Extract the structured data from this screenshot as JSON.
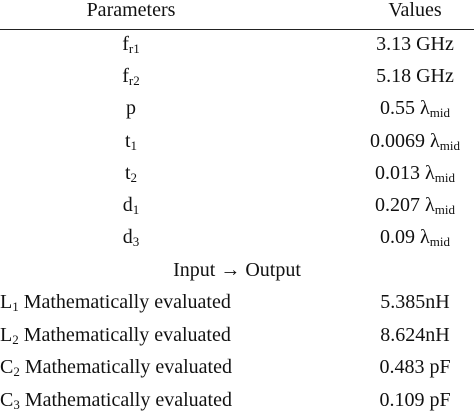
{
  "table": {
    "header": [
      "Parameters",
      "Values"
    ],
    "rows": [
      {
        "param": [
          "f",
          {
            "sub": "r1"
          }
        ],
        "value": [
          "3.13 GHz"
        ]
      },
      {
        "param": [
          "f",
          {
            "sub": "r2"
          }
        ],
        "value": [
          "5.18 GHz"
        ]
      },
      {
        "param": [
          "p"
        ],
        "value": [
          "0.55 λ",
          {
            "sub": "mid"
          }
        ]
      },
      {
        "param": [
          "t",
          {
            "sub": "1"
          }
        ],
        "value": [
          "0.0069 λ",
          {
            "sub": "mid"
          }
        ]
      },
      {
        "param": [
          "t",
          {
            "sub": "2"
          }
        ],
        "value": [
          "0.013 λ",
          {
            "sub": "mid"
          }
        ]
      },
      {
        "param": [
          "d",
          {
            "sub": "1"
          }
        ],
        "value": [
          "0.207 λ",
          {
            "sub": "mid"
          }
        ]
      },
      {
        "param": [
          "d",
          {
            "sub": "3"
          }
        ],
        "value": [
          "0.09 λ",
          {
            "sub": "mid"
          }
        ]
      }
    ],
    "section": "Input → Output",
    "output_rows": [
      {
        "param": [
          "L",
          {
            "sub": "1"
          },
          " Mathematically evaluated"
        ],
        "value": [
          "5.385nH"
        ]
      },
      {
        "param": [
          "L",
          {
            "sub": "2"
          },
          " Mathematically evaluated"
        ],
        "value": [
          "8.624nH"
        ]
      },
      {
        "param": [
          "C",
          {
            "sub": "2"
          },
          " Mathematically evaluated"
        ],
        "value": [
          "0.483 pF"
        ]
      },
      {
        "param": [
          "C",
          {
            "sub": "3"
          },
          " Mathematically evaluated"
        ],
        "value": [
          "0.109 pF"
        ]
      }
    ]
  }
}
